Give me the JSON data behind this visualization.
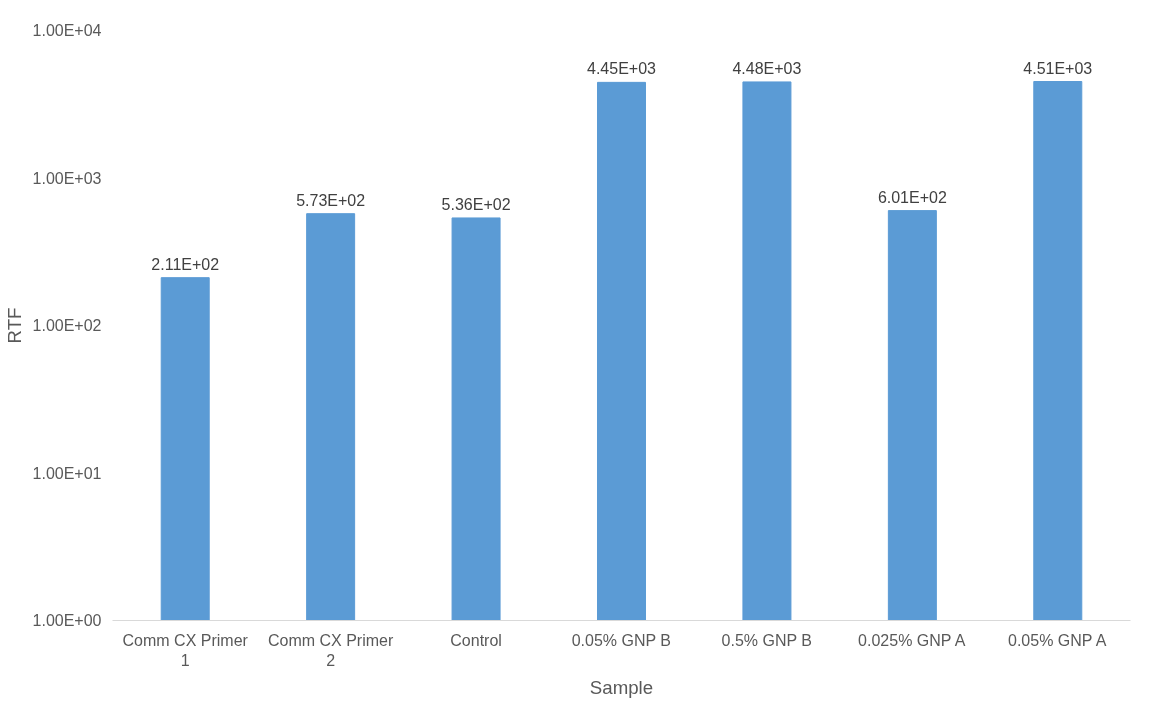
{
  "chart_data": {
    "type": "bar",
    "xlabel": "Sample",
    "ylabel": "RTF",
    "categories": [
      "Comm CX Primer 1",
      "Comm CX Primer 2",
      "Control",
      "0.05% GNP B",
      "0.5% GNP B",
      "0.025% GNP A",
      "0.05% GNP A"
    ],
    "values": [
      211,
      573,
      536,
      4450,
      4480,
      601,
      4510
    ],
    "value_labels": [
      "2.11E+02",
      "5.73E+02",
      "5.36E+02",
      "4.45E+03",
      "4.48E+03",
      "6.01E+02",
      "4.51E+03"
    ],
    "color": "#5b9bd5",
    "log": "y",
    "ylim": [
      1,
      10000
    ],
    "yticks": [
      {
        "value": 1,
        "label": "1.00E+00"
      },
      {
        "value": 10,
        "label": "1.00E+01"
      },
      {
        "value": 100,
        "label": "1.00E+02"
      },
      {
        "value": 1000,
        "label": "1.00E+03"
      },
      {
        "value": 10000,
        "label": "1.00E+04"
      }
    ],
    "grid": false
  }
}
